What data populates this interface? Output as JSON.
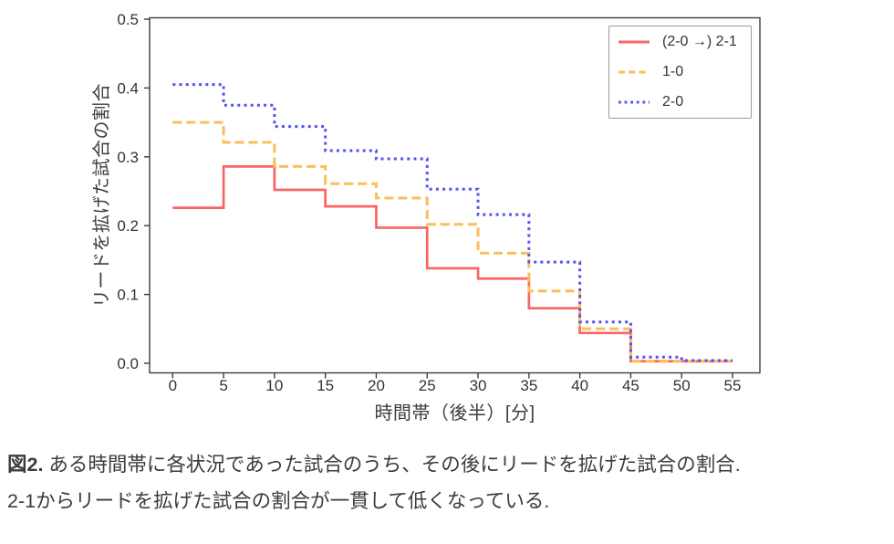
{
  "chart_data": {
    "type": "line",
    "subtype": "step-post",
    "title": "",
    "xlabel": "時間帯（後半）[分]",
    "ylabel": "リードを拡げた試合の割合",
    "x_ticks": [
      0,
      5,
      10,
      15,
      20,
      25,
      30,
      35,
      40,
      45,
      50,
      55
    ],
    "y_tick_labels": [
      "0.0",
      "0.1",
      "0.2",
      "0.3",
      "0.4",
      "0.5"
    ],
    "xlim": [
      -2.1,
      57.7
    ],
    "ylim": [
      -0.014,
      0.502
    ],
    "grid": false,
    "legend_position": "upper right",
    "axis_color": "#3c3c3c",
    "tick_text_color": "#333333",
    "step_edges": [
      0,
      5,
      10,
      15,
      20,
      25,
      30,
      35,
      40,
      45,
      50,
      55
    ],
    "series": [
      {
        "name": "(2-0 →) 2-1",
        "color": "#f96565",
        "style": "solid",
        "values": [
          0.226,
          0.286,
          0.252,
          0.228,
          0.197,
          0.138,
          0.123,
          0.08,
          0.044,
          0.003,
          0.003
        ]
      },
      {
        "name": "1-0",
        "color": "#fcbe58",
        "style": "dashed",
        "values": [
          0.35,
          0.321,
          0.286,
          0.261,
          0.24,
          0.202,
          0.16,
          0.105,
          0.05,
          0.003,
          0.003
        ]
      },
      {
        "name": "2-0",
        "color": "#5254f0",
        "style": "dotted",
        "values": [
          0.405,
          0.375,
          0.344,
          0.309,
          0.297,
          0.253,
          0.216,
          0.147,
          0.06,
          0.009,
          0.004
        ]
      }
    ]
  },
  "caption": {
    "label": "図2.",
    "line1": " ある時間帯に各状況であった試合のうち、その後にリードを拡げた試合の割合.",
    "line2": "2-1からリードを拡げた試合の割合が一貫して低くなっている."
  }
}
